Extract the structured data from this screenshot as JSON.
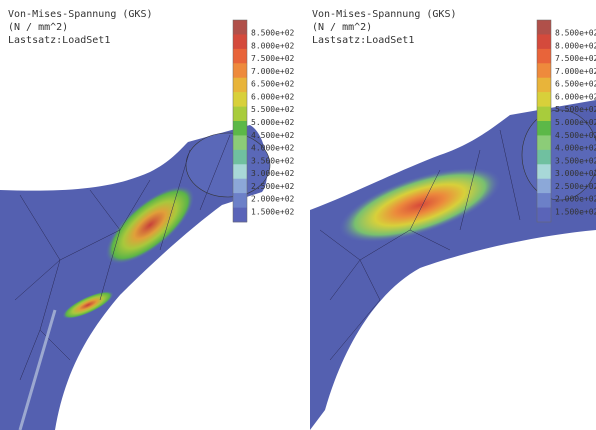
{
  "panels": [
    {
      "title": "Von-Mises-Spannung (GKS)",
      "unit": "(N / mm^2)",
      "load_set": "Lastsatz:LoadSet1",
      "legend": [
        "8.500e+02",
        "8.000e+02",
        "7.500e+02",
        "7.000e+02",
        "6.500e+02",
        "6.000e+02",
        "5.500e+02",
        "5.000e+02",
        "4.500e+02",
        "4.000e+02",
        "3.500e+02",
        "3.000e+02",
        "2.500e+02",
        "2.000e+02",
        "1.500e+02"
      ]
    },
    {
      "title": "Von-Mises-Spannung (GKS)",
      "unit": "(N / mm^2)",
      "load_set": "Lastsatz:LoadSet1",
      "legend": [
        "8.500e+02",
        "8.000e+02",
        "7.500e+02",
        "7.000e+02",
        "6.500e+02",
        "6.000e+02",
        "5.500e+02",
        "5.000e+02",
        "4.500e+02",
        "4.000e+02",
        "3.500e+02",
        "3.000e+02",
        "2.500e+02",
        "2.000e+02",
        "1.500e+02"
      ]
    }
  ],
  "legend_colors": [
    "#b0504a",
    "#d44a3c",
    "#e8643a",
    "#ee8a3c",
    "#e8b43a",
    "#d8d03a",
    "#a8cc3c",
    "#5cb848",
    "#8ccc78",
    "#70c0a0",
    "#a8d8d8",
    "#8ca8d8",
    "#6c80c8",
    "#5a64b8"
  ]
}
